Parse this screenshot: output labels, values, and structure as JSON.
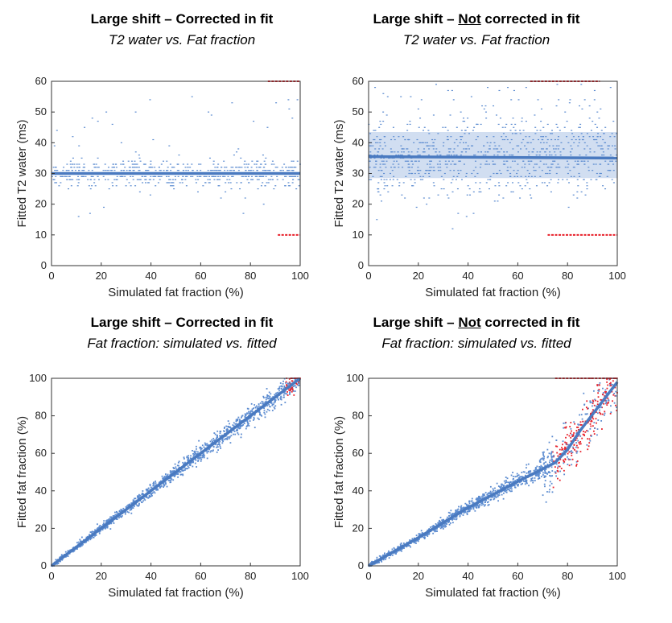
{
  "colors": {
    "fit": "#4a7ac0",
    "scatter": "#5b8bd0",
    "band": "#c9d8ee",
    "outlier": "#e8202a",
    "axis": "#333333"
  },
  "chart_data": [
    {
      "id": "p1",
      "type": "scatter",
      "title_parts": [
        {
          "text": "Large shift – Corrected in fit",
          "underline": false
        }
      ],
      "subtitle": "T2 water vs. Fat fraction",
      "xlabel": "Simulated fat fraction (%)",
      "ylabel": "Fitted T2 water (ms)",
      "xlim": [
        0,
        100
      ],
      "ylim": [
        0,
        60
      ],
      "xticks": [
        0,
        20,
        40,
        60,
        80,
        100
      ],
      "yticks": [
        0,
        10,
        20,
        30,
        40,
        50,
        60
      ],
      "fit_line": [
        [
          0,
          30
        ],
        [
          100,
          30
        ]
      ],
      "band": null,
      "scatter_center": 30,
      "scatter_spread": 3,
      "outliers": [
        {
          "x0": 87,
          "x1": 100,
          "y": 60
        },
        {
          "x0": 91,
          "x1": 100,
          "y": 10
        }
      ]
    },
    {
      "id": "p2",
      "type": "scatter",
      "title_parts": [
        {
          "text": "Large shift – ",
          "underline": false
        },
        {
          "text": "Not",
          "underline": true
        },
        {
          "text": " corrected in fit",
          "underline": false
        }
      ],
      "subtitle": "T2 water vs. Fat fraction",
      "xlabel": "Simulated fat fraction (%)",
      "ylabel": "Fitted T2 water (ms)",
      "xlim": [
        0,
        100
      ],
      "ylim": [
        0,
        60
      ],
      "xticks": [
        0,
        20,
        40,
        60,
        80,
        100
      ],
      "yticks": [
        0,
        10,
        20,
        30,
        40,
        50,
        60
      ],
      "fit_line": [
        [
          0,
          35.5
        ],
        [
          100,
          35
        ]
      ],
      "band": [
        [
          0,
          28.5,
          43.5
        ],
        [
          100,
          28.5,
          43.5
        ]
      ],
      "scatter_center": 35,
      "scatter_spread": 6,
      "outliers": [
        {
          "x0": 65,
          "x1": 93,
          "y": 60
        },
        {
          "x0": 72,
          "x1": 100,
          "y": 10
        }
      ]
    },
    {
      "id": "p3",
      "type": "scatter",
      "title_parts": [
        {
          "text": "Large shift – Corrected in fit",
          "underline": false
        }
      ],
      "subtitle": "Fat fraction: simulated vs. fitted",
      "xlabel": "Simulated fat fraction (%)",
      "ylabel": "Fitted fat fraction (%)",
      "xlim": [
        0,
        100
      ],
      "ylim": [
        0,
        100
      ],
      "xticks": [
        0,
        20,
        40,
        60,
        80,
        100
      ],
      "yticks": [
        0,
        20,
        40,
        60,
        80,
        100
      ],
      "fit_line": [
        [
          0,
          0
        ],
        [
          100,
          100
        ]
      ],
      "band": null,
      "outliers": [
        {
          "x0": 96,
          "x1": 100,
          "y": 100
        }
      ]
    },
    {
      "id": "p4",
      "type": "scatter",
      "title_parts": [
        {
          "text": "Large shift – ",
          "underline": false
        },
        {
          "text": "Not",
          "underline": true
        },
        {
          "text": " corrected in fit",
          "underline": false
        }
      ],
      "subtitle": "Fat fraction: simulated vs. fitted",
      "xlabel": "Simulated fat fraction (%)",
      "ylabel": "Fitted fat fraction (%)",
      "xlim": [
        0,
        100
      ],
      "ylim": [
        0,
        100
      ],
      "xticks": [
        0,
        20,
        40,
        60,
        80,
        100
      ],
      "yticks": [
        0,
        20,
        40,
        60,
        80,
        100
      ],
      "fit_line": [
        [
          0,
          0
        ],
        [
          20,
          15
        ],
        [
          40,
          31
        ],
        [
          60,
          45
        ],
        [
          75,
          55
        ],
        [
          80,
          62
        ],
        [
          85,
          72
        ],
        [
          100,
          98
        ]
      ],
      "band": null,
      "outliers": [
        {
          "x0": 75,
          "x1": 100,
          "y": 100
        }
      ]
    }
  ]
}
